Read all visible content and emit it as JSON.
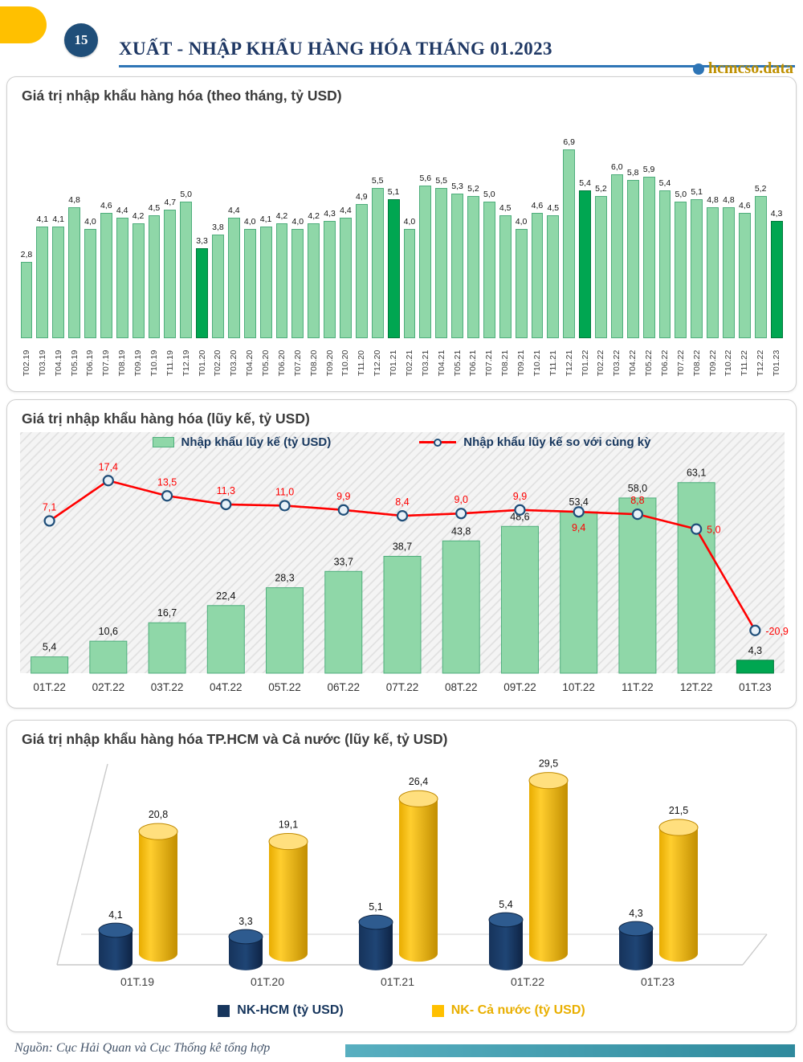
{
  "header": {
    "page_number": "15",
    "title": "XUẤT - NHẬP KHẨU HÀNG HÓA THÁNG 01.2023",
    "brand": "hcmcso.data"
  },
  "colors": {
    "bar_green": "#8FD7A8",
    "bar_green_border": "#4FAE7C",
    "bar_dark_green": "#00A651",
    "bar_dark_green_border": "#007A3B",
    "line_red": "#FF0000",
    "marker_fill": "#E8F1F8",
    "marker_stroke": "#1F4E79",
    "navy": "#17365D",
    "gold": "#FFC000",
    "accent_blue": "#2E75B6",
    "brand_gold": "#BF9000",
    "teal_bar": "#3F9FB0"
  },
  "chart_data": [
    {
      "type": "bar",
      "title": "Giá trị nhập khẩu hàng hóa (theo tháng, tỷ USD)",
      "unit": "tỷ USD",
      "decimal_separator": ",",
      "grid": false,
      "ylim": [
        0,
        7.5
      ],
      "categories": [
        "T02.19",
        "T03.19",
        "T04.19",
        "T05.19",
        "T06.19",
        "T07.19",
        "T08.19",
        "T09.19",
        "T10.19",
        "T11.19",
        "T12.19",
        "T01.20",
        "T02.20",
        "T03.20",
        "T04.20",
        "T05.20",
        "T06.20",
        "T07.20",
        "T08.20",
        "T09.20",
        "T10.20",
        "T11.20",
        "T12.20",
        "T01.21",
        "T02.21",
        "T03.21",
        "T04.21",
        "T05.21",
        "T06.21",
        "T07.21",
        "T08.21",
        "T09.21",
        "T10.21",
        "T11.21",
        "T12.21",
        "T01.22",
        "T02.22",
        "T03.22",
        "T04.22",
        "T05.22",
        "T06.22",
        "T07.22",
        "T08.22",
        "T09.22",
        "T10.22",
        "T11.22",
        "T12.22",
        "T01.23"
      ],
      "values": [
        2.8,
        4.1,
        4.1,
        4.8,
        4.0,
        4.6,
        4.4,
        4.2,
        4.5,
        4.7,
        5.0,
        3.3,
        3.8,
        4.4,
        4.0,
        4.1,
        4.2,
        4.0,
        4.2,
        4.3,
        4.4,
        4.9,
        5.5,
        5.1,
        4.0,
        5.6,
        5.5,
        5.3,
        5.2,
        5.0,
        4.5,
        4.0,
        4.6,
        4.5,
        6.9,
        5.4,
        5.2,
        6.0,
        5.8,
        5.9,
        5.4,
        5.0,
        5.1,
        4.8,
        4.8,
        4.6,
        5.2,
        4.3
      ],
      "highlight_indices": [
        11,
        23,
        35,
        47
      ]
    },
    {
      "type": "bar+line",
      "title": "Giá trị nhập khẩu hàng hóa (lũy kế, tỷ USD)",
      "decimal_separator": ",",
      "legend_position": "top",
      "plot_background": "diagonal-hatch",
      "categories": [
        "01T.22",
        "02T.22",
        "03T.22",
        "04T.22",
        "05T.22",
        "06T.22",
        "07T.22",
        "08T.22",
        "09T.22",
        "10T.22",
        "11T.22",
        "12T.22",
        "01T.23"
      ],
      "series": [
        {
          "name": "Nhập khẩu lũy kế (tỷ USD)",
          "type": "bar",
          "values": [
            5.4,
            10.6,
            16.7,
            22.4,
            28.3,
            33.7,
            38.7,
            43.8,
            48.6,
            53.4,
            58.0,
            63.1,
            4.3
          ],
          "highlight_indices": [
            12
          ]
        },
        {
          "name": "Nhập khẩu lũy kế so với cùng kỳ",
          "type": "line",
          "values": [
            7.1,
            17.4,
            13.5,
            11.3,
            11.0,
            9.9,
            8.4,
            9.0,
            9.9,
            9.4,
            8.8,
            5.0,
            -20.9
          ]
        }
      ]
    },
    {
      "type": "cylinder-bar-3d",
      "title": "Giá trị nhập khẩu hàng hóa TP.HCM và Cả nước (lũy kế, tỷ USD)",
      "decimal_separator": ",",
      "legend_position": "bottom",
      "categories": [
        "01T.19",
        "01T.20",
        "01T.21",
        "01T.22",
        "01T.23"
      ],
      "series": [
        {
          "name": "NK-HCM (tỷ USD)",
          "values": [
            4.1,
            3.3,
            5.1,
            5.4,
            4.3
          ],
          "color": "#17365D"
        },
        {
          "name": "NK- Cả nước (tỷ USD)",
          "values": [
            20.8,
            19.1,
            26.4,
            29.5,
            21.5
          ],
          "color": "#FFC000"
        }
      ]
    }
  ],
  "footer": {
    "source": "Nguồn: Cục Hải Quan và Cục Thống kê tổng hợp"
  }
}
